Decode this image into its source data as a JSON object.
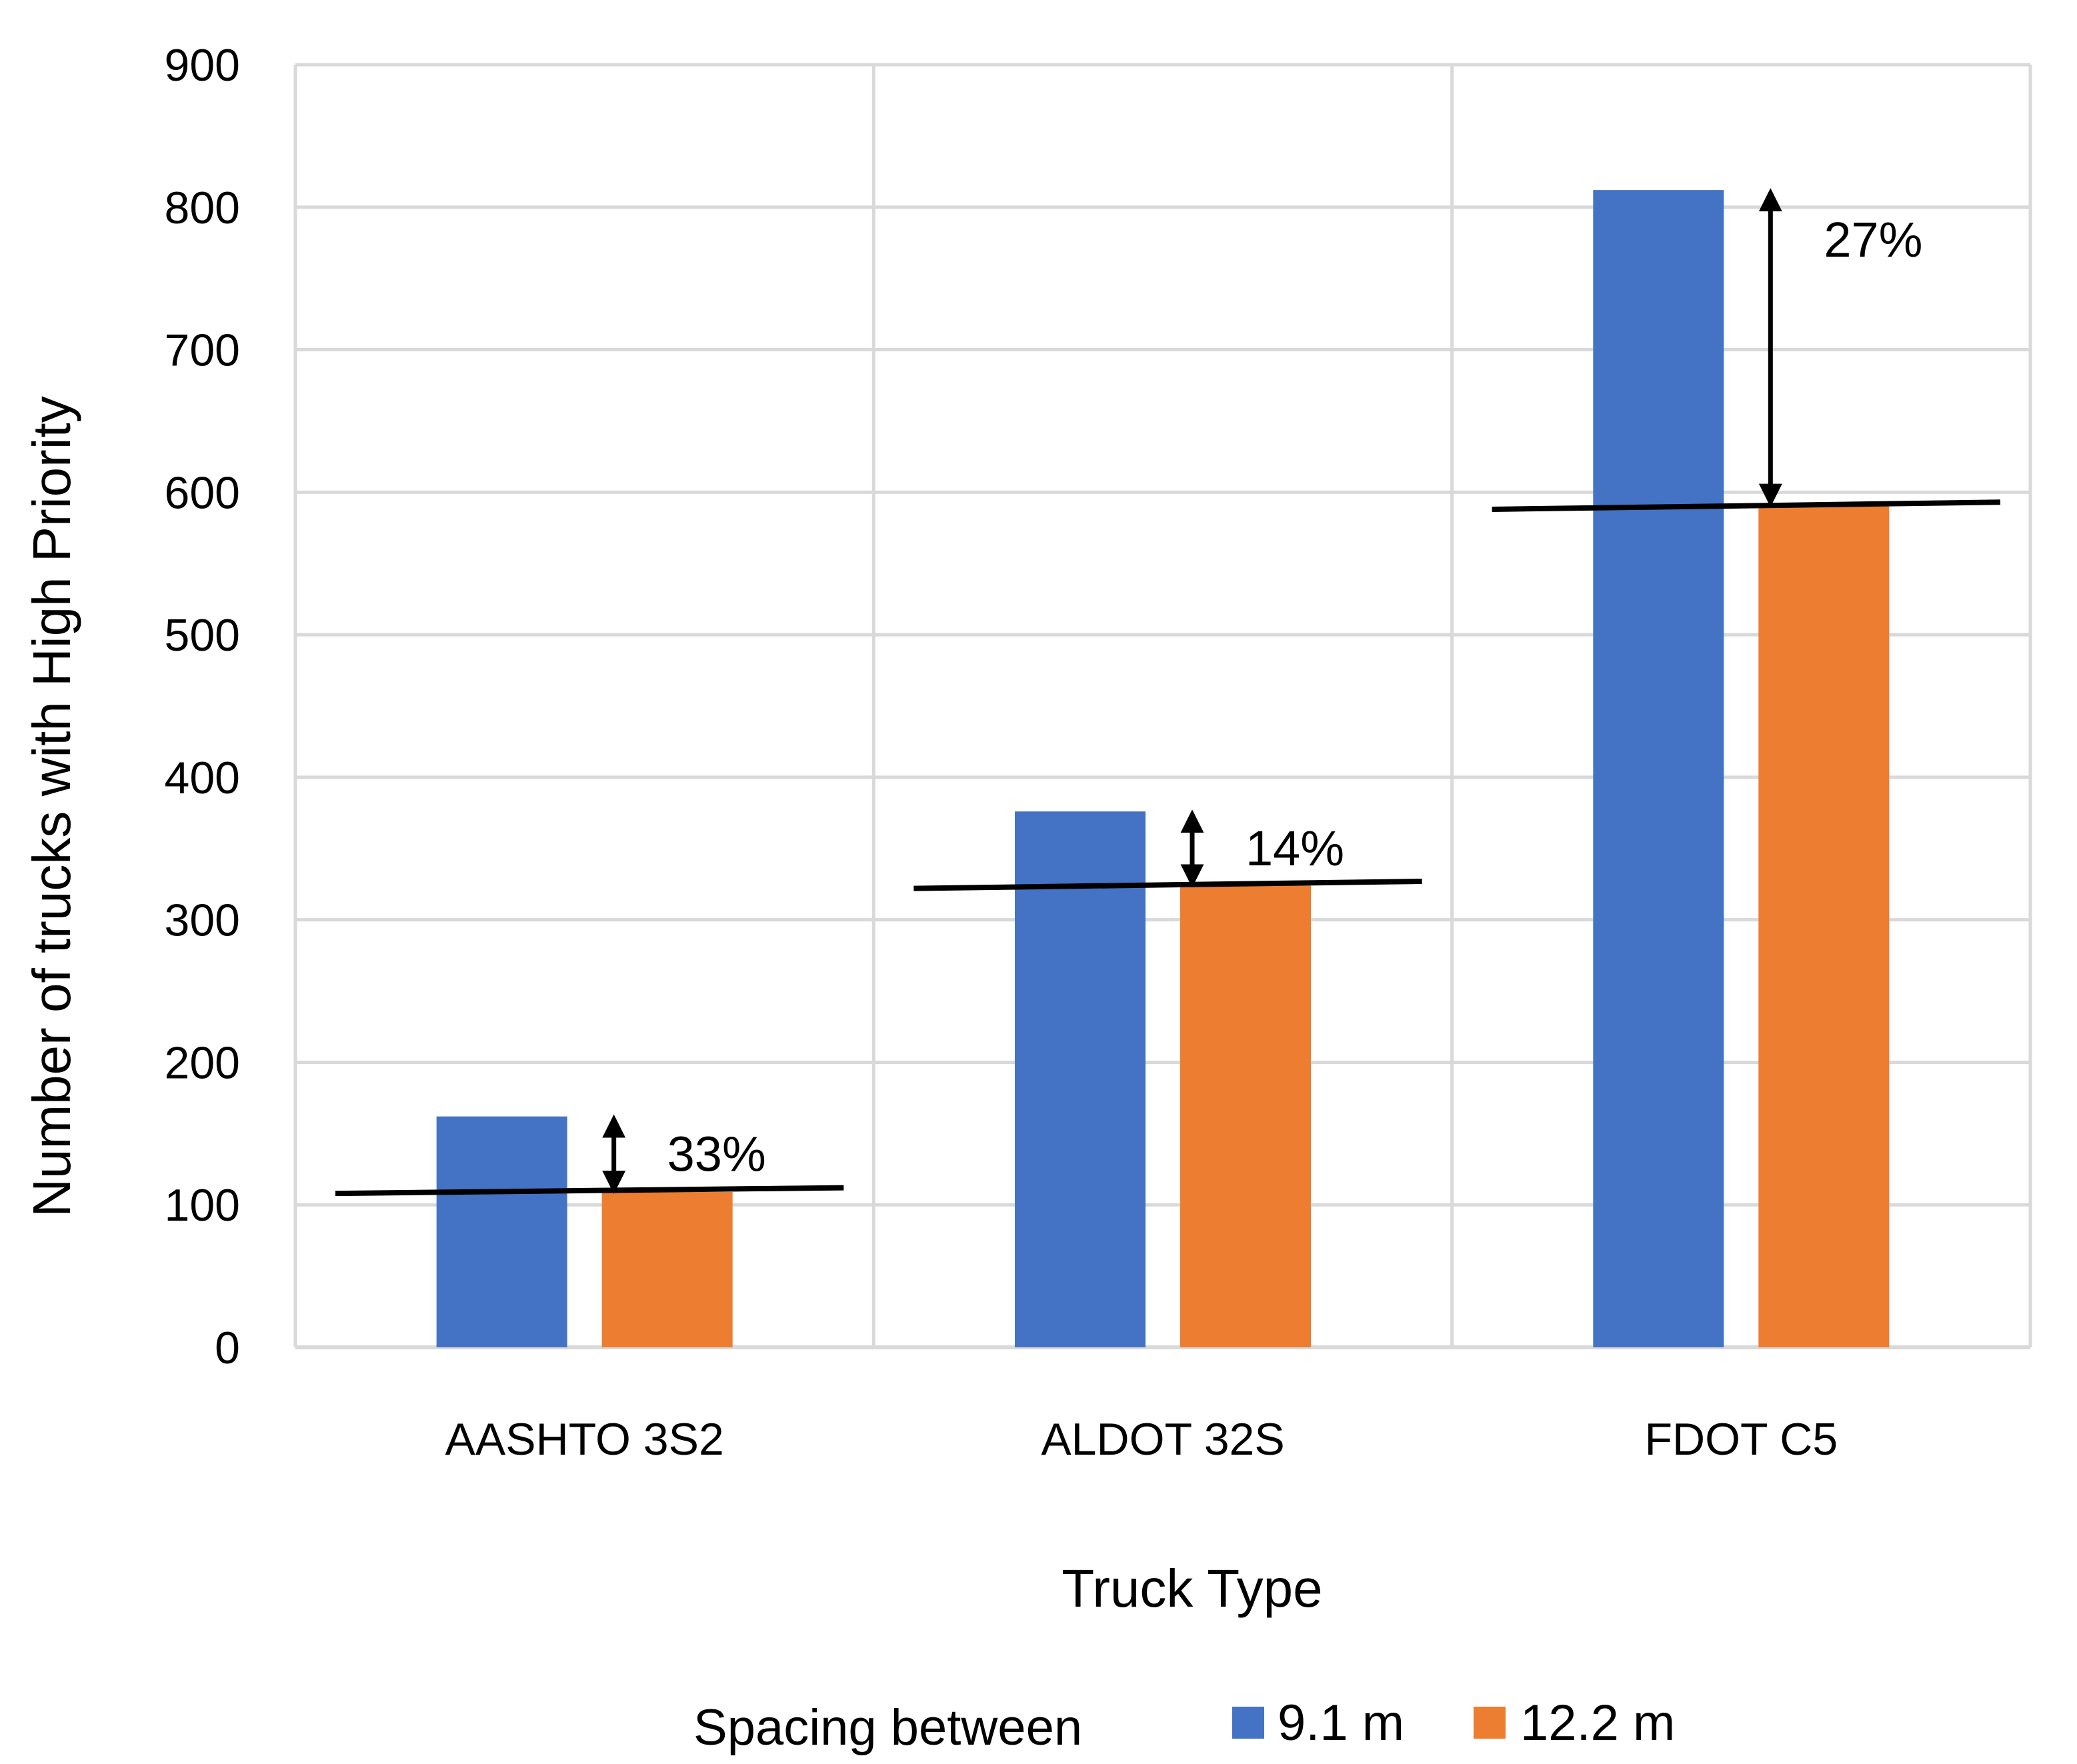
{
  "chart_data": {
    "type": "bar",
    "title": "",
    "xlabel": "Truck Type",
    "ylabel": "Number of trucks with High Priority",
    "categories": [
      "AASHTO 3S2",
      "ALDOT 32S",
      "FDOT C5"
    ],
    "series": [
      {
        "name": "9.1 m",
        "color": "#4472c4",
        "values": [
          162,
          376,
          812
        ]
      },
      {
        "name": "12.2 m",
        "color": "#ed7d31",
        "values": [
          109,
          324,
          591
        ]
      }
    ],
    "ylim": [
      0,
      900
    ],
    "yticks": [
      0,
      100,
      200,
      300,
      400,
      500,
      600,
      700,
      800,
      900
    ],
    "grid": true,
    "legend": {
      "title": "Spacing between",
      "placement": "bottom"
    },
    "annotations": [
      {
        "category": "AASHTO 3S2",
        "text": "33%",
        "line_left": 108,
        "line_right": 112
      },
      {
        "category": "ALDOT 32S",
        "text": "14%",
        "line_left": 322,
        "line_right": 327
      },
      {
        "category": "FDOT C5",
        "text": "27%",
        "line_left": 588,
        "line_right": 593
      }
    ]
  }
}
